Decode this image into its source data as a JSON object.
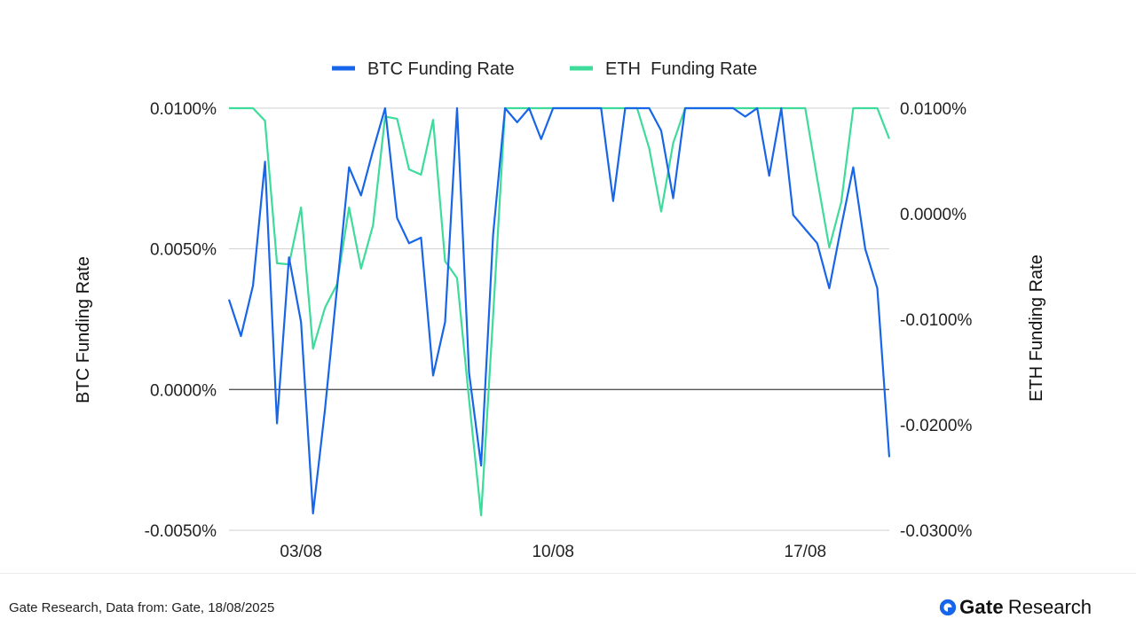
{
  "chart_data": {
    "type": "line",
    "title": "",
    "x_tick_labels": [
      "03/08",
      "10/08",
      "17/08"
    ],
    "x_tick_indices": [
      6,
      27,
      48
    ],
    "y_left": {
      "label": "BTC  Funding Rate",
      "range": [
        -0.005,
        0.01
      ],
      "ticks": [
        -0.005,
        0,
        0.005,
        0.01
      ],
      "tick_labels": [
        "-0.0050%",
        "0.0000%",
        "0.0050%",
        "0.0100%"
      ]
    },
    "y_right": {
      "label": "ETH Funding Rate",
      "range": [
        -0.03,
        0.01
      ],
      "ticks": [
        -0.03,
        -0.02,
        -0.01,
        0,
        0.01
      ],
      "tick_labels": [
        "-0.0300%",
        "-0.0200%",
        "-0.0100%",
        "0.0000%",
        "0.0100%"
      ]
    },
    "grid": true,
    "legend": "top-center",
    "series": [
      {
        "name": "BTC Funding Rate",
        "axis": "left",
        "color": "#1765e8",
        "values": [
          0.0032,
          0.0019,
          0.0037,
          0.0081,
          -0.0012,
          0.0047,
          0.0024,
          -0.0044,
          -0.0007,
          0.0036,
          0.0079,
          0.0069,
          0.0085,
          0.01,
          0.0061,
          0.0052,
          0.0054,
          0.0005,
          0.0024,
          0.01,
          0.0006,
          -0.0027,
          0.0055,
          0.01,
          0.0095,
          0.01,
          0.0089,
          0.01,
          0.01,
          0.01,
          0.01,
          0.01,
          0.0067,
          0.01,
          0.01,
          0.01,
          0.0092,
          0.0068,
          0.01,
          0.01,
          0.01,
          0.01,
          0.01,
          0.0097,
          0.01,
          0.0076,
          0.01,
          0.0062,
          0.0057,
          0.0052,
          0.0036,
          0.0058,
          0.0079,
          0.005,
          0.0036,
          -0.0024
        ]
      },
      {
        "name": "ETH  Funding Rate",
        "axis": "right",
        "color": "#3ddc9a",
        "values": [
          0.01,
          0.01,
          0.01,
          0.0088,
          -0.0047,
          -0.0048,
          0.0006,
          -0.0128,
          -0.0089,
          -0.0067,
          0.0006,
          -0.0052,
          -0.0011,
          0.0092,
          0.009,
          0.0042,
          0.0037,
          0.0089,
          -0.0045,
          -0.0061,
          -0.0176,
          -0.0286,
          -0.0097,
          0.01,
          0.01,
          0.01,
          0.01,
          0.01,
          0.01,
          0.01,
          0.01,
          0.01,
          0.01,
          0.01,
          0.01,
          0.0062,
          0.0002,
          0.0067,
          0.01,
          0.01,
          0.01,
          0.01,
          0.01,
          0.01,
          0.01,
          0.01,
          0.01,
          0.01,
          0.01,
          0.0033,
          -0.0032,
          0.0011,
          0.01,
          0.01,
          0.01,
          0.0071
        ]
      }
    ]
  },
  "footer": {
    "source": "Gate Research, Data from: Gate, 18/08/2025",
    "brand_gate": "Gate",
    "brand_research": "Research",
    "brand_color": "#1765e8"
  }
}
